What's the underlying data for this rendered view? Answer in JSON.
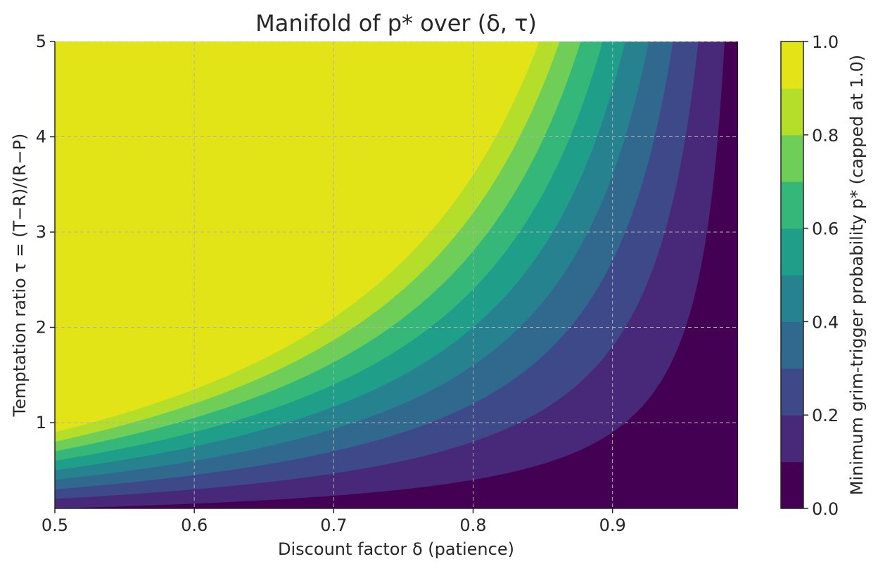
{
  "chart_data": {
    "type": "heatmap",
    "subtype": "filled-contour",
    "title": "Manifold of p* over (δ, τ)",
    "xlabel": "Discount factor δ (patience)",
    "ylabel": "Temptation ratio τ = (T−R)/(R−P)",
    "colorbar_label": "Minimum grim-trigger probability p* (capped at 1.0)",
    "xlim": [
      0.5,
      0.99
    ],
    "ylim": [
      0.1,
      5.0
    ],
    "x_ticks": [
      0.5,
      0.6,
      0.7,
      0.8,
      0.9
    ],
    "x_tick_labels": [
      "0.5",
      "0.6",
      "0.7",
      "0.8",
      "0.9"
    ],
    "y_ticks": [
      1,
      2,
      3,
      4,
      5
    ],
    "y_tick_labels": [
      "1",
      "2",
      "3",
      "4",
      "5"
    ],
    "colorbar_ticks": [
      0.0,
      0.2,
      0.4,
      0.6,
      0.8,
      1.0
    ],
    "colorbar_tick_labels": [
      "0.0",
      "0.2",
      "0.4",
      "0.6",
      "0.8",
      "1.0"
    ],
    "contour_levels": [
      0.0,
      0.1,
      0.2,
      0.3,
      0.4,
      0.5,
      0.6,
      0.7,
      0.8,
      0.9,
      1.0
    ],
    "colormap": "viridis",
    "level_colors": [
      "#440154",
      "#482878",
      "#3e4989",
      "#31688e",
      "#26828e",
      "#1f9e89",
      "#35b779",
      "#6ece58",
      "#b5de2b",
      "#e2e418"
    ],
    "function": "p* = min(1, τ(1−δ)/δ)",
    "grid": true
  }
}
